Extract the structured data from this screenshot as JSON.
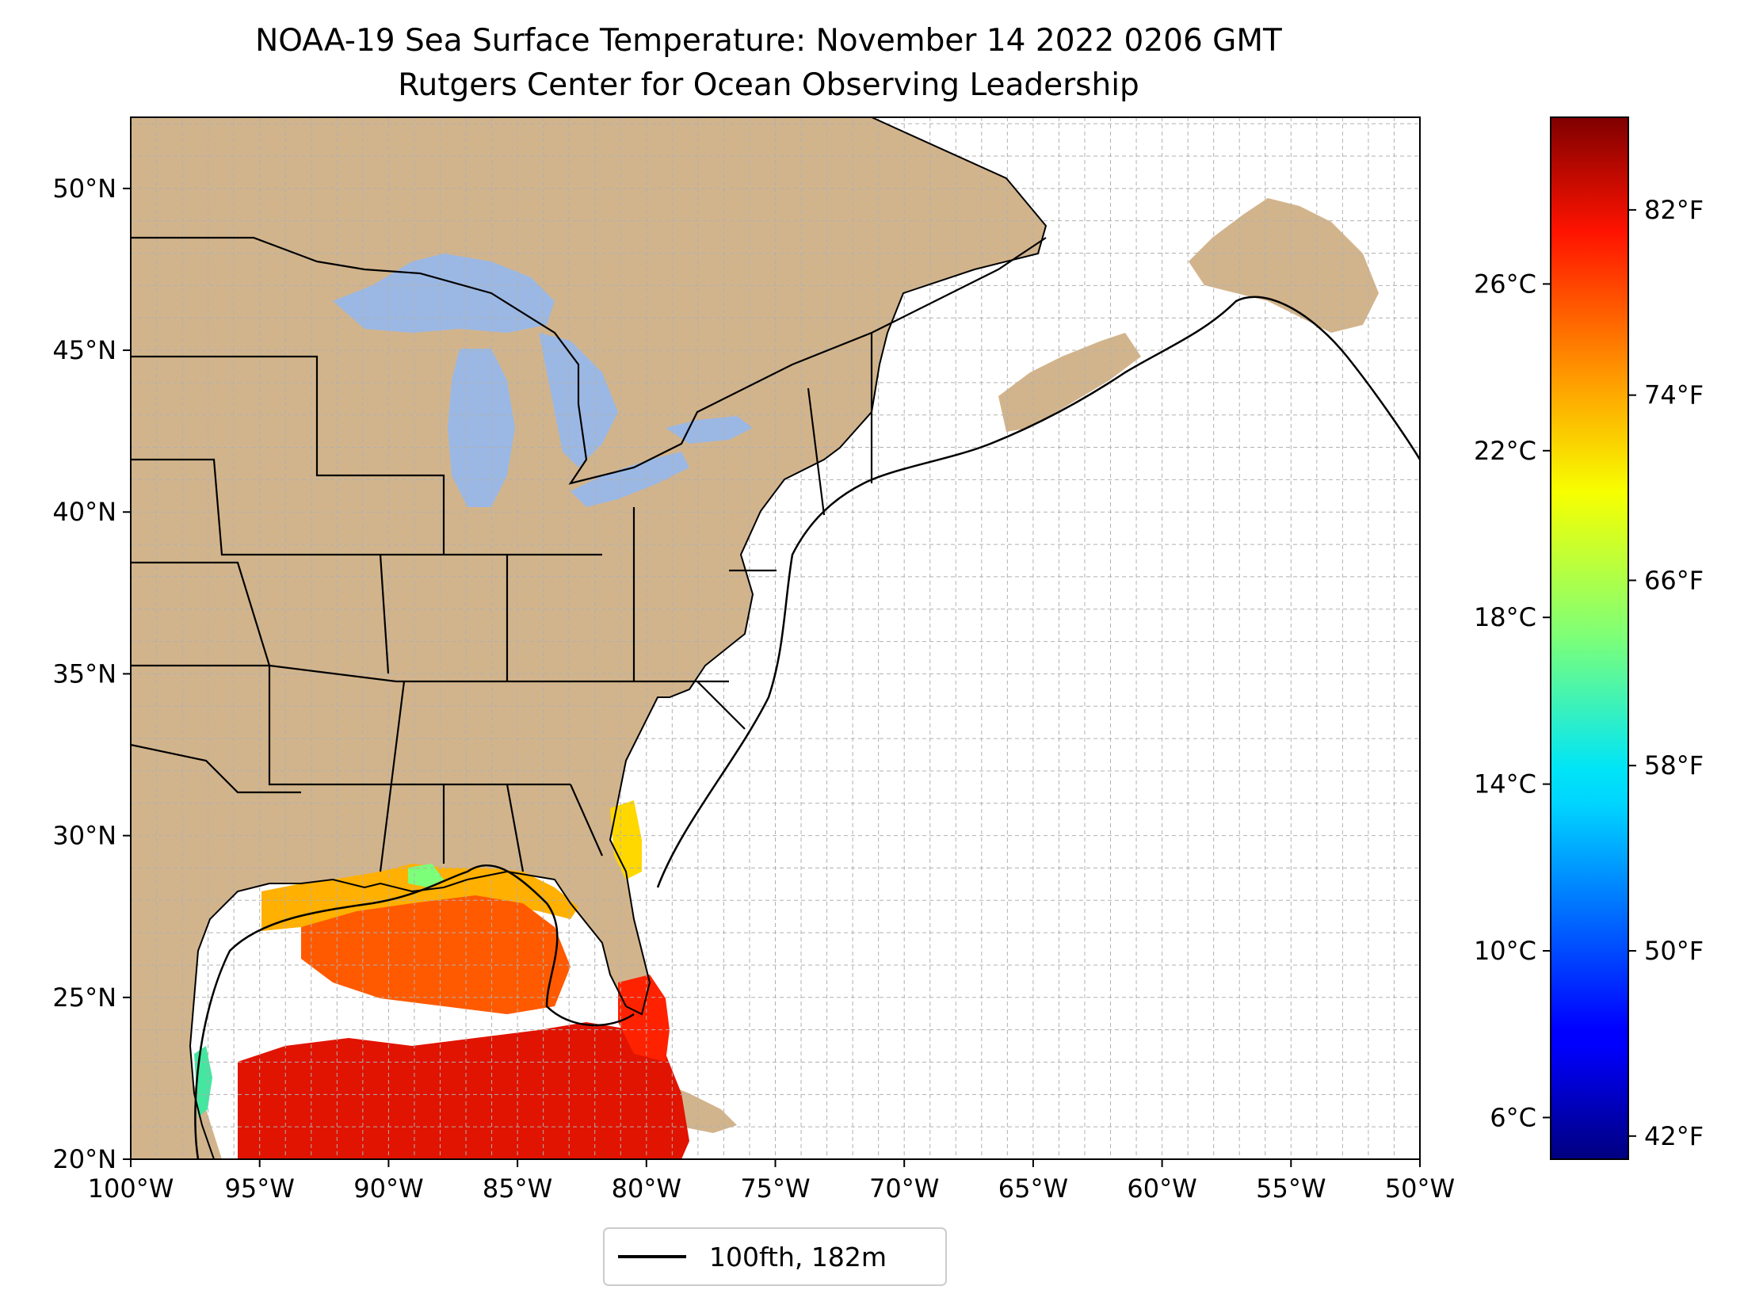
{
  "title": "NOAA-19 Sea Surface Temperature: November 14 2022 0206 GMT",
  "subtitle": "Rutgers Center for Ocean Observing Leadership",
  "map": {
    "lon_range": [
      -100,
      -50
    ],
    "lat_range": [
      20,
      52.2
    ],
    "x_ticks": [
      {
        "lon": -100,
        "label": "100°W"
      },
      {
        "lon": -95,
        "label": "95°W"
      },
      {
        "lon": -90,
        "label": "90°W"
      },
      {
        "lon": -85,
        "label": "85°W"
      },
      {
        "lon": -80,
        "label": "80°W"
      },
      {
        "lon": -75,
        "label": "75°W"
      },
      {
        "lon": -70,
        "label": "70°W"
      },
      {
        "lon": -65,
        "label": "65°W"
      },
      {
        "lon": -60,
        "label": "60°W"
      },
      {
        "lon": -55,
        "label": "55°W"
      },
      {
        "lon": -50,
        "label": "50°W"
      }
    ],
    "y_ticks": [
      {
        "lat": 20,
        "label": "20°N"
      },
      {
        "lat": 25,
        "label": "25°N"
      },
      {
        "lat": 30,
        "label": "30°N"
      },
      {
        "lat": 35,
        "label": "35°N"
      },
      {
        "lat": 40,
        "label": "40°N"
      },
      {
        "lat": 45,
        "label": "45°N"
      },
      {
        "lat": 50,
        "label": "50°N"
      }
    ],
    "grid": true,
    "colors": {
      "land": "#d2b48c",
      "lakes": "#9bb8e4",
      "ocean": "#ffffff",
      "gridline": "#b0b0b0",
      "border": "#000000"
    }
  },
  "colorbar": {
    "colormap": "jet",
    "range_c": [
      5,
      30
    ],
    "celsius_ticks": [
      {
        "value": 6,
        "label": "6°C"
      },
      {
        "value": 10,
        "label": "10°C"
      },
      {
        "value": 14,
        "label": "14°C"
      },
      {
        "value": 18,
        "label": "18°C"
      },
      {
        "value": 22,
        "label": "22°C"
      },
      {
        "value": 26,
        "label": "26°C"
      }
    ],
    "fahrenheit_ticks": [
      {
        "value": 42,
        "label": "42°F"
      },
      {
        "value": 50,
        "label": "50°F"
      },
      {
        "value": 58,
        "label": "58°F"
      },
      {
        "value": 66,
        "label": "66°F"
      },
      {
        "value": 74,
        "label": "74°F"
      },
      {
        "value": 82,
        "label": "82°F"
      }
    ]
  },
  "legend": {
    "label": "100fth, 182m",
    "line_color": "#000000"
  }
}
